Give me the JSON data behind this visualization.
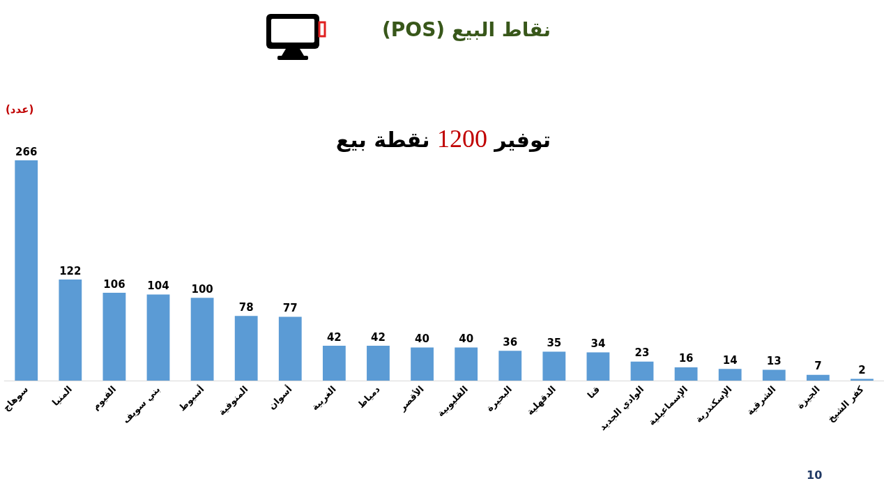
{
  "chart_data": {
    "type": "bar",
    "title": "نقاط البيع (POS)",
    "subtitle": "توفير 1200 نقطة بيع",
    "ylabel": "(عدد)",
    "annotations": [
      "10"
    ],
    "categories": [
      "سوهاج",
      "المنيا",
      "الفيوم",
      "بني سويف",
      "أسيوط",
      "المنوفية",
      "أسوان",
      "الغربية",
      "دمياط",
      "الأقصر",
      "القليوبية",
      "البحيرة",
      "الدقهلية",
      "قنا",
      "الوادي الجديد",
      "الإسماعيلية",
      "الإسكندرية",
      "الشرقية",
      "الجيزة",
      "كفر الشيخ"
    ],
    "values": [
      266,
      122,
      106,
      104,
      100,
      78,
      77,
      42,
      42,
      40,
      40,
      36,
      35,
      34,
      23,
      16,
      14,
      13,
      7,
      2
    ],
    "color": "#5b9bd5",
    "data_labels": true,
    "tick_labels": "x"
  }
}
